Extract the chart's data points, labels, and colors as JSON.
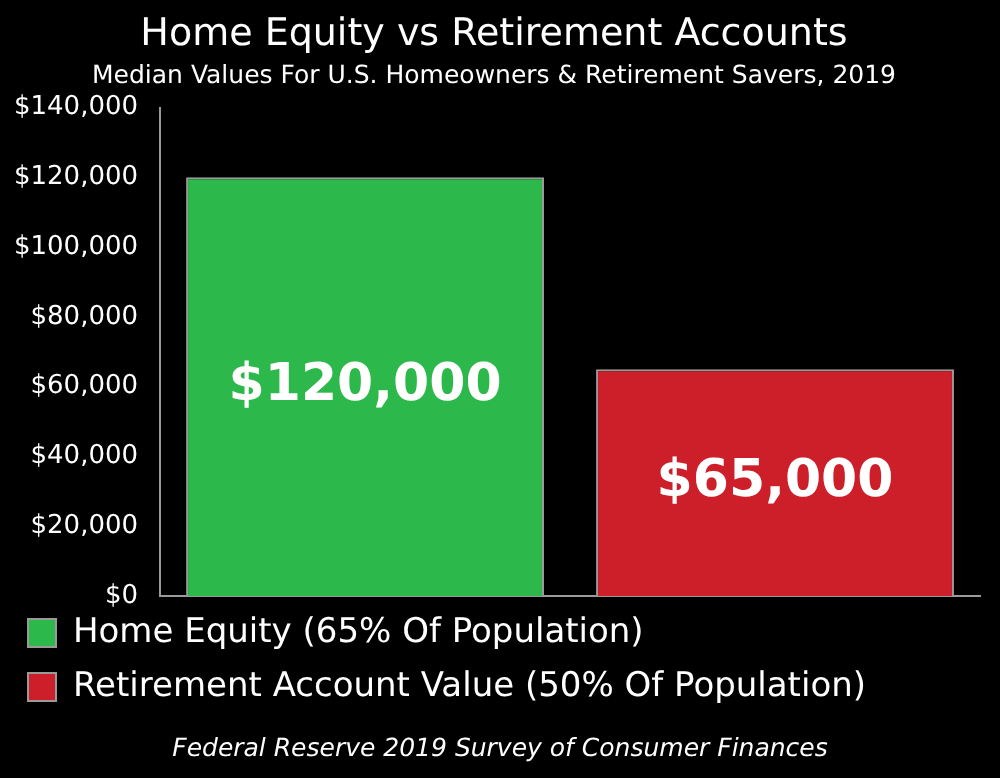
{
  "chart_data": {
    "type": "bar",
    "title": "Home Equity vs Retirement Accounts",
    "subtitle": "Median Values For U.S. Homeowners & Retirement Savers, 2019",
    "categories": [
      null,
      null
    ],
    "series": [
      {
        "name": "Home Equity (65% Of Population)",
        "color": "#2db84c",
        "values": [
          120000,
          null
        ],
        "value_labels": [
          "$120,000",
          null
        ]
      },
      {
        "name": "Retirement Account Value (50% Of Population)",
        "color": "#cc1f2a",
        "values": [
          null,
          65000
        ],
        "value_labels": [
          null,
          "$65,000"
        ]
      }
    ],
    "ylim": [
      0,
      140000
    ],
    "yticks": [
      {
        "value": 0,
        "label": "$0"
      },
      {
        "value": 20000,
        "label": "$20,000"
      },
      {
        "value": 40000,
        "label": "$40,000"
      },
      {
        "value": 60000,
        "label": "$60,000"
      },
      {
        "value": 80000,
        "label": "$80,000"
      },
      {
        "value": 100000,
        "label": "$100,000"
      },
      {
        "value": 120000,
        "label": "$120,000"
      },
      {
        "value": 140000,
        "label": "$140,000"
      }
    ],
    "grid": false,
    "legend": "bottom",
    "annotations": [
      "Federal Reserve 2019 Survey of Consumer Finances"
    ]
  }
}
